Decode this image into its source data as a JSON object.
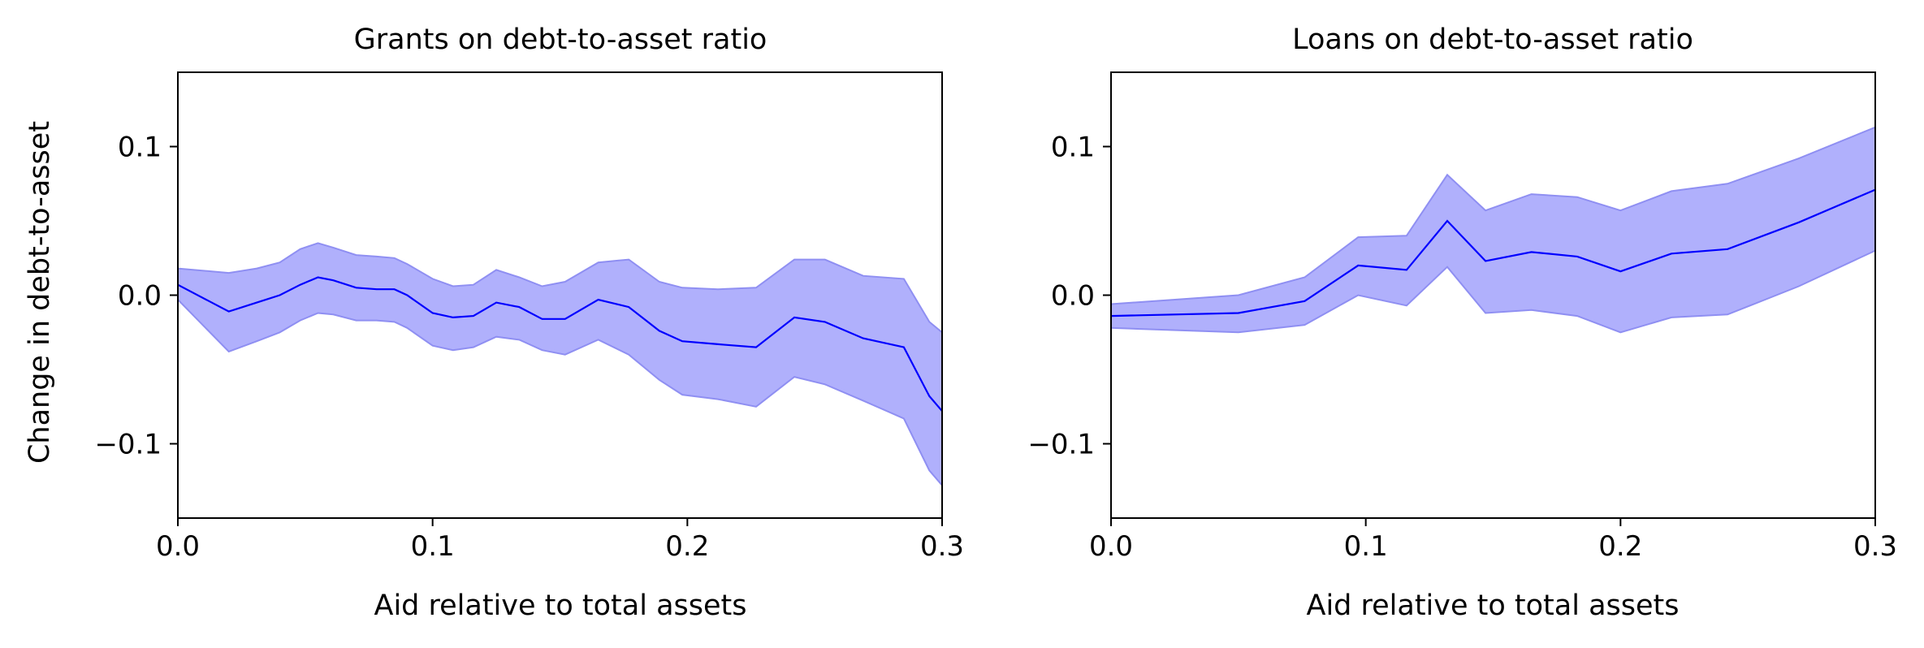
{
  "figure": {
    "ylabel": "Change in debt-to-asset"
  },
  "chart_data": [
    {
      "type": "line",
      "title": "Grants on debt-to-asset ratio",
      "xlabel": "Aid relative to total assets",
      "ylabel": "Change in debt-to-asset",
      "xlim": [
        0,
        0.3
      ],
      "ylim": [
        -0.15,
        0.15
      ],
      "xticks": [
        {
          "value": 0.0,
          "label": "0.0"
        },
        {
          "value": 0.1,
          "label": "0.1"
        },
        {
          "value": 0.2,
          "label": "0.2"
        },
        {
          "value": 0.3,
          "label": "0.3"
        }
      ],
      "yticks": [
        {
          "value": 0.1,
          "label": "0.1"
        },
        {
          "value": 0.0,
          "label": "0.0"
        },
        {
          "value": -0.1,
          "label": "−0.1"
        }
      ],
      "grid": false,
      "line_color": "#0000ff",
      "band_color": "#b0b0fc",
      "band_edge_color": "#8f8ff2",
      "x": [
        0.0,
        0.02,
        0.031,
        0.04,
        0.048,
        0.055,
        0.061,
        0.07,
        0.078,
        0.085,
        0.09,
        0.1,
        0.108,
        0.116,
        0.125,
        0.134,
        0.143,
        0.152,
        0.165,
        0.177,
        0.189,
        0.198,
        0.212,
        0.227,
        0.242,
        0.254,
        0.269,
        0.285,
        0.295,
        0.3
      ],
      "y": [
        0.007,
        -0.011,
        -0.005,
        0.0,
        0.007,
        0.012,
        0.01,
        0.005,
        0.004,
        0.004,
        0.0,
        -0.012,
        -0.015,
        -0.014,
        -0.005,
        -0.008,
        -0.016,
        -0.016,
        -0.003,
        -0.008,
        -0.024,
        -0.031,
        -0.033,
        -0.035,
        -0.015,
        -0.018,
        -0.029,
        -0.035,
        -0.068,
        -0.078
      ],
      "lower": [
        -0.003,
        -0.038,
        -0.031,
        -0.025,
        -0.017,
        -0.012,
        -0.013,
        -0.017,
        -0.017,
        -0.018,
        -0.022,
        -0.034,
        -0.037,
        -0.035,
        -0.028,
        -0.03,
        -0.037,
        -0.04,
        -0.03,
        -0.04,
        -0.057,
        -0.067,
        -0.07,
        -0.075,
        -0.055,
        -0.06,
        -0.071,
        -0.083,
        -0.118,
        -0.128
      ],
      "upper": [
        0.018,
        0.015,
        0.018,
        0.022,
        0.031,
        0.035,
        0.032,
        0.027,
        0.026,
        0.025,
        0.021,
        0.011,
        0.006,
        0.007,
        0.017,
        0.012,
        0.006,
        0.009,
        0.022,
        0.024,
        0.009,
        0.005,
        0.004,
        0.005,
        0.024,
        0.024,
        0.013,
        0.011,
        -0.018,
        -0.025
      ]
    },
    {
      "type": "line",
      "title": "Loans on debt-to-asset ratio",
      "xlabel": "Aid relative to total assets",
      "ylabel": "",
      "xlim": [
        0,
        0.3
      ],
      "ylim": [
        -0.15,
        0.15
      ],
      "xticks": [
        {
          "value": 0.0,
          "label": "0.0"
        },
        {
          "value": 0.1,
          "label": "0.1"
        },
        {
          "value": 0.2,
          "label": "0.2"
        },
        {
          "value": 0.3,
          "label": "0.3"
        }
      ],
      "yticks": [
        {
          "value": 0.1,
          "label": "0.1"
        },
        {
          "value": 0.0,
          "label": "0.0"
        },
        {
          "value": -0.1,
          "label": "−0.1"
        }
      ],
      "grid": false,
      "line_color": "#0000ff",
      "band_color": "#b0b0fc",
      "band_edge_color": "#8f8ff2",
      "x": [
        0.0,
        0.05,
        0.076,
        0.097,
        0.116,
        0.132,
        0.147,
        0.165,
        0.183,
        0.2,
        0.22,
        0.242,
        0.27,
        0.3
      ],
      "y": [
        -0.014,
        -0.012,
        -0.004,
        0.02,
        0.017,
        0.05,
        0.023,
        0.029,
        0.026,
        0.016,
        0.028,
        0.031,
        0.049,
        0.071
      ],
      "lower": [
        -0.022,
        -0.025,
        -0.02,
        0.0,
        -0.007,
        0.019,
        -0.012,
        -0.01,
        -0.014,
        -0.025,
        -0.015,
        -0.013,
        0.006,
        0.03
      ],
      "upper": [
        -0.006,
        0.0,
        0.012,
        0.039,
        0.04,
        0.081,
        0.057,
        0.068,
        0.066,
        0.057,
        0.07,
        0.075,
        0.092,
        0.113
      ]
    }
  ]
}
